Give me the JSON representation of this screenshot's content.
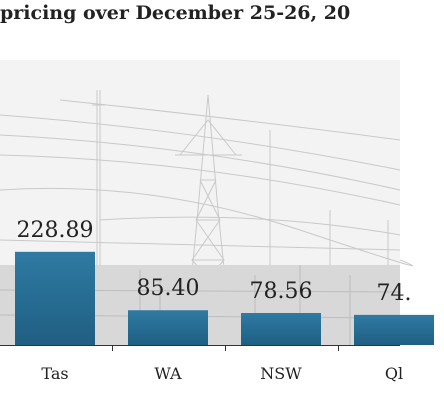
{
  "chart_data": {
    "type": "bar",
    "title": "pricing over December 25-26, 20",
    "categories": [
      "Tas",
      "WA",
      "NSW",
      "Ql"
    ],
    "values": [
      228.89,
      85.4,
      78.56,
      74
    ],
    "value_labels": [
      "228.89",
      "85.40",
      "78.56",
      "74."
    ],
    "ylim": [
      0,
      700
    ],
    "grid": false,
    "bar_color": "#1f5f82",
    "bar_color_top": "#2f7aa3"
  }
}
